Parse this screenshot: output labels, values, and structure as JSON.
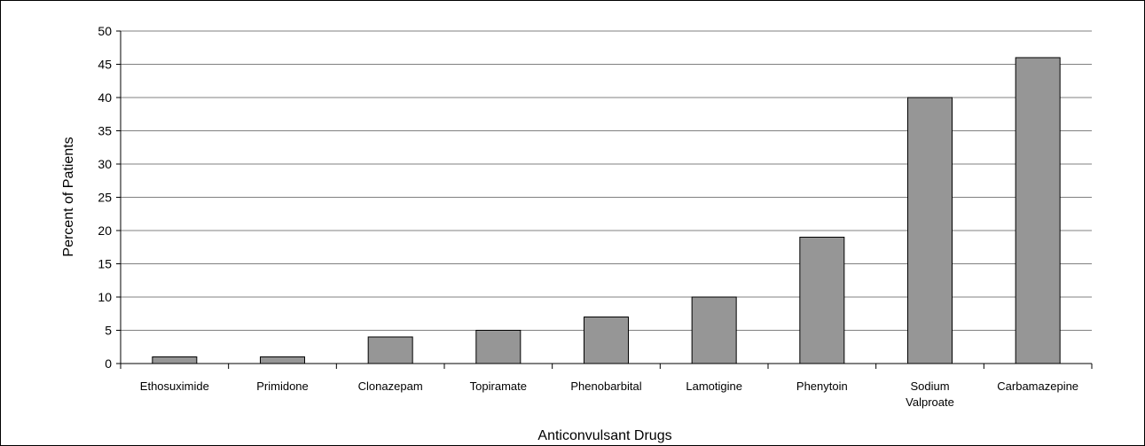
{
  "chart_data": {
    "type": "bar",
    "categories": [
      [
        "Ethosuximide"
      ],
      [
        "Primidone"
      ],
      [
        "Clonazepam"
      ],
      [
        "Topiramate"
      ],
      [
        "Phenobarbital"
      ],
      [
        "Lamotigine"
      ],
      [
        "Phenytoin"
      ],
      [
        "Sodium",
        "Valproate"
      ],
      [
        "Carbamazepine"
      ]
    ],
    "values": [
      1,
      1,
      4,
      5,
      7,
      10,
      19,
      40,
      46
    ],
    "xlabel": "Anticonvulsant Drugs",
    "ylabel": "Percent of Patients",
    "ylim": [
      0,
      50
    ],
    "yticks": [
      0,
      5,
      10,
      15,
      20,
      25,
      30,
      35,
      40,
      45,
      50
    ],
    "grid": "horizontal",
    "colors": {
      "bar_fill": "#969696",
      "bar_stroke": "#000000",
      "grid": "#808080",
      "axis": "#000000"
    }
  }
}
